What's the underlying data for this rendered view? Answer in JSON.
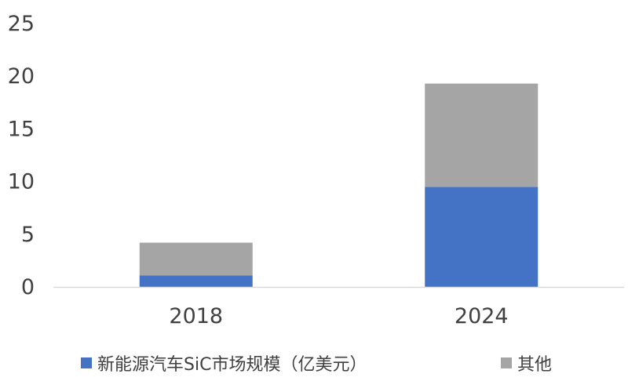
{
  "chart_data": {
    "type": "bar",
    "stacked": true,
    "categories": [
      "2018",
      "2024"
    ],
    "series": [
      {
        "name": "新能源汽车SiC市场规模（亿美元）",
        "values": [
          1.1,
          9.5
        ],
        "color": "#4472C4"
      },
      {
        "name": "其他",
        "values": [
          3.1,
          9.8
        ],
        "color": "#A5A5A5"
      }
    ],
    "ylim": [
      0,
      25
    ],
    "yticks": [
      0,
      5,
      10,
      15,
      20,
      25
    ],
    "grid": false,
    "legend_position": "bottom"
  }
}
